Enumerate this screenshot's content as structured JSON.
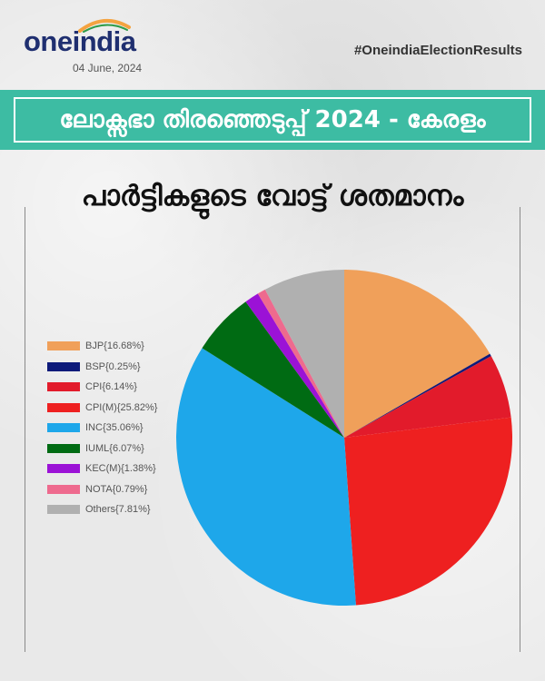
{
  "header": {
    "logo_text_one": "one",
    "logo_text_india": "india",
    "date": "04 June, 2024",
    "hashtag": "#OneindiaElectionResults"
  },
  "title": "ലോക്സഭാ തിരഞ്ഞെടുപ്പ് 2024 - കേരളം",
  "subtitle": "പാർട്ടികളുടെ വോട്ട് ശതമാനം",
  "colors": {
    "title_band": "#3dbca3",
    "logo_arc_saffron": "#f4a340",
    "logo_arc_green": "#2e9b48"
  },
  "chart_data": {
    "type": "pie",
    "start_angle_deg": 0,
    "direction": "clockwise",
    "legend_position": "left",
    "series": [
      {
        "name": "BJP",
        "value": 16.68,
        "label": "BJP{16.68%}",
        "color": "#f0a05a"
      },
      {
        "name": "BSP",
        "value": 0.25,
        "label": "BSP{0.25%}",
        "color": "#0d1a7a"
      },
      {
        "name": "CPI",
        "value": 6.14,
        "label": "CPI{6.14%}",
        "color": "#e21b2b"
      },
      {
        "name": "CPI(M)",
        "value": 25.82,
        "label": "CPI(M){25.82%}",
        "color": "#ee2020"
      },
      {
        "name": "INC",
        "value": 35.06,
        "label": "INC{35.06%}",
        "color": "#1ea7ea"
      },
      {
        "name": "IUML",
        "value": 6.07,
        "label": "IUML{6.07%}",
        "color": "#006b13"
      },
      {
        "name": "KEC(M)",
        "value": 1.38,
        "label": "KEC(M){1.38%}",
        "color": "#9b12d6"
      },
      {
        "name": "NOTA",
        "value": 0.79,
        "label": "NOTA{0.79%}",
        "color": "#ee6a8e"
      },
      {
        "name": "Others",
        "value": 7.81,
        "label": "Others{7.81%}",
        "color": "#b0b0b0"
      }
    ]
  }
}
